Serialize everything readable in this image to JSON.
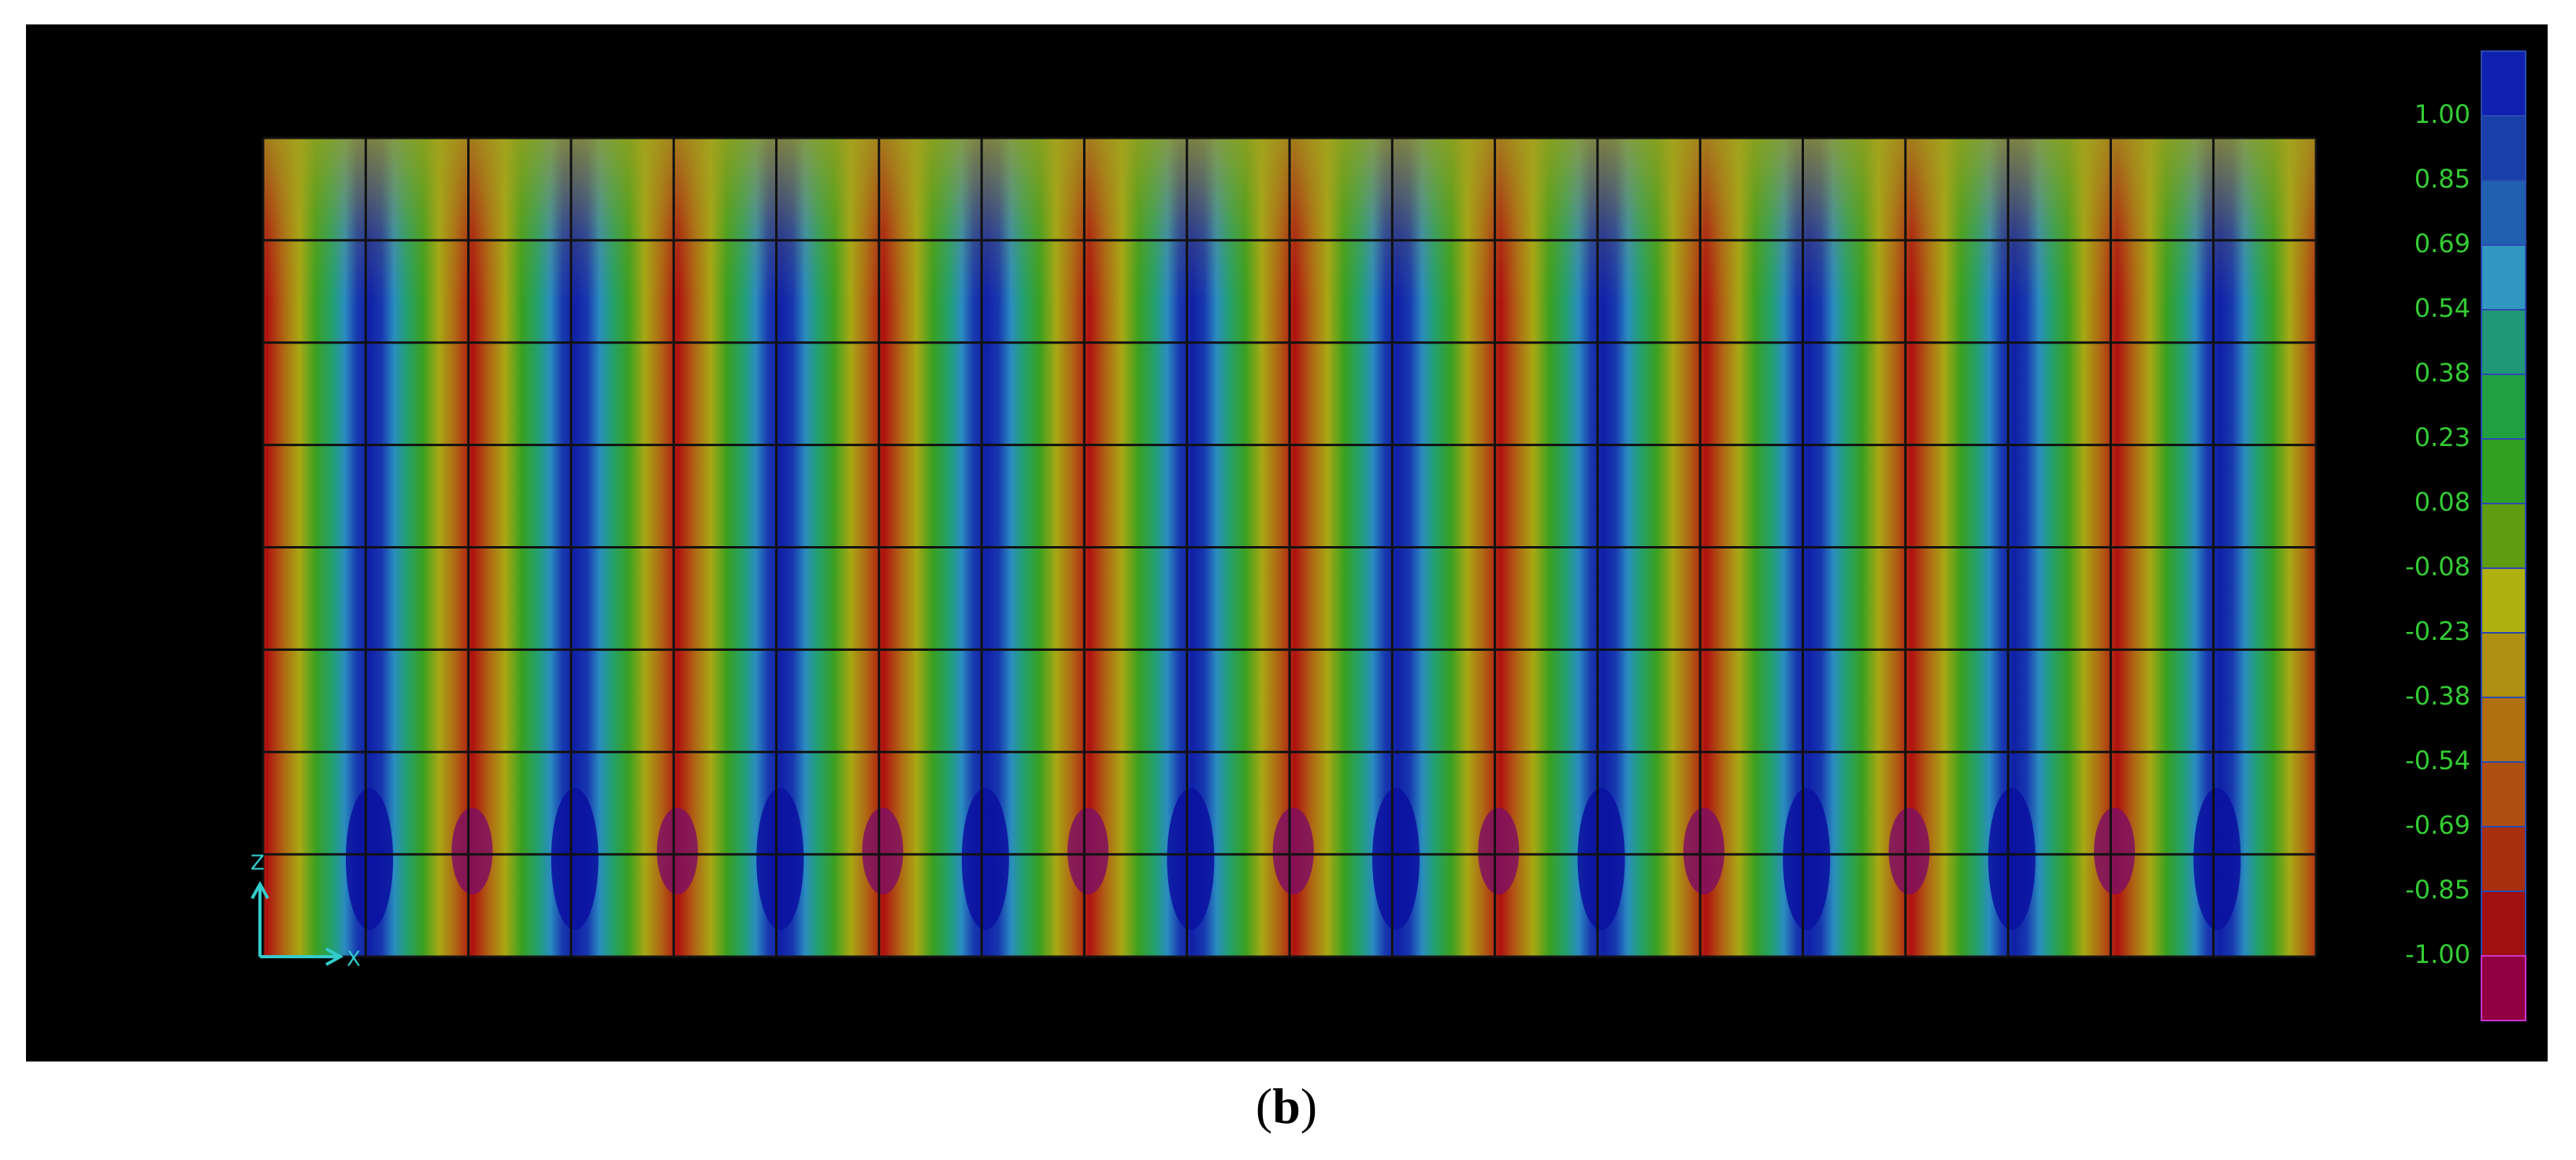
{
  "legend": {
    "labels": [
      "1.00",
      "0.85",
      "0.69",
      "0.54",
      "0.38",
      "0.23",
      "0.08",
      "-0.08",
      "-0.23",
      "-0.38",
      "-0.54",
      "-0.69",
      "-0.85",
      "-1.00"
    ]
  },
  "axes": {
    "vertical": "Z",
    "horizontal": "X"
  },
  "caption": {
    "open": "(",
    "letter": "b",
    "close": ")"
  }
}
